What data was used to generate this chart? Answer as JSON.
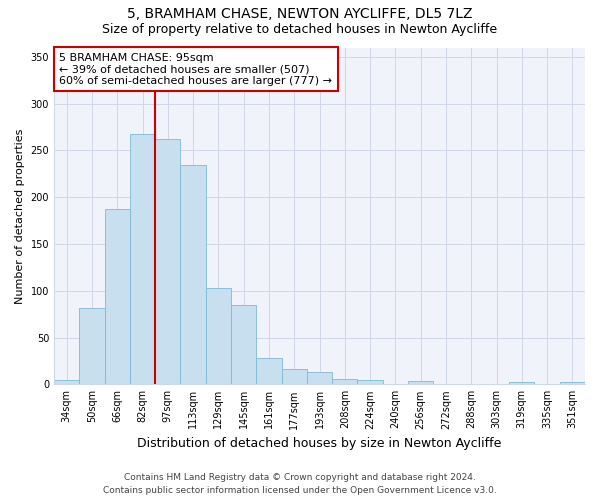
{
  "title": "5, BRAMHAM CHASE, NEWTON AYCLIFFE, DL5 7LZ",
  "subtitle": "Size of property relative to detached houses in Newton Aycliffe",
  "xlabel": "Distribution of detached houses by size in Newton Aycliffe",
  "ylabel": "Number of detached properties",
  "bar_labels": [
    "34sqm",
    "50sqm",
    "66sqm",
    "82sqm",
    "97sqm",
    "113sqm",
    "129sqm",
    "145sqm",
    "161sqm",
    "177sqm",
    "193sqm",
    "208sqm",
    "224sqm",
    "240sqm",
    "256sqm",
    "272sqm",
    "288sqm",
    "303sqm",
    "319sqm",
    "335sqm",
    "351sqm"
  ],
  "bar_values": [
    5,
    82,
    187,
    268,
    262,
    234,
    103,
    85,
    28,
    16,
    13,
    6,
    5,
    0,
    3,
    0,
    0,
    0,
    2,
    0,
    2
  ],
  "bar_color": "#c8dff0",
  "bar_edge_color": "#7eb8d4",
  "vline_x": 3.5,
  "annotation_text": "5 BRAMHAM CHASE: 95sqm\n← 39% of detached houses are smaller (507)\n60% of semi-detached houses are larger (777) →",
  "vline_color": "#cc0000",
  "ylim": [
    0,
    360
  ],
  "yticks": [
    0,
    50,
    100,
    150,
    200,
    250,
    300,
    350
  ],
  "footer_line1": "Contains HM Land Registry data © Crown copyright and database right 2024.",
  "footer_line2": "Contains public sector information licensed under the Open Government Licence v3.0.",
  "bg_color": "#ffffff",
  "plot_bg_color": "#f0f4fa",
  "annotation_box_color": "#ffffff",
  "annotation_box_edge": "#cc0000",
  "grid_color": "#d0d8e8",
  "title_fontsize": 10,
  "subtitle_fontsize": 9,
  "ylabel_fontsize": 8,
  "xlabel_fontsize": 9,
  "tick_fontsize": 7,
  "annotation_fontsize": 8,
  "footer_fontsize": 6.5
}
